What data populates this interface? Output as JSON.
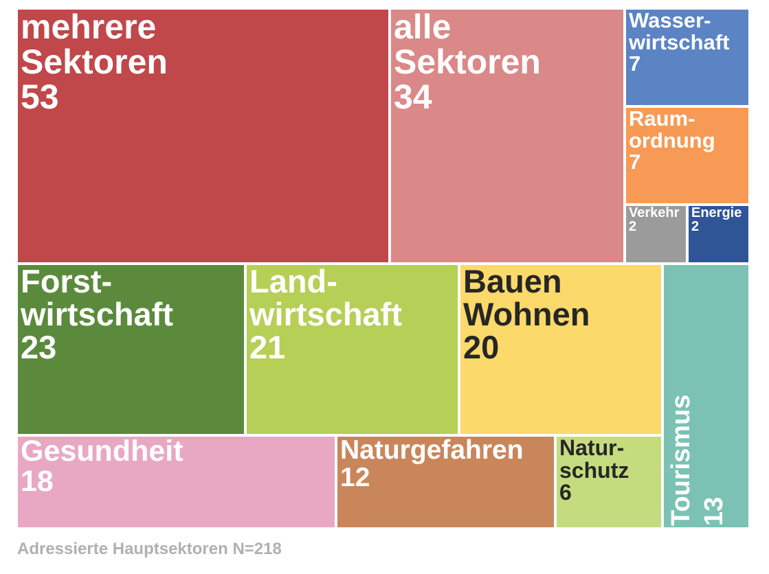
{
  "chart_data": {
    "type": "treemap",
    "caption": "Adressierte Hauptsektoren N=218",
    "items": [
      {
        "key": "mehrere",
        "lines": [
          "mehrere",
          "Sektoren"
        ],
        "value": 53,
        "color": "#c0474a",
        "text_color": "#ffffff"
      },
      {
        "key": "alle",
        "lines": [
          "alle",
          "Sektoren"
        ],
        "value": 34,
        "color": "#da8888",
        "text_color": "#ffffff"
      },
      {
        "key": "wasser",
        "lines": [
          "Wasser-",
          "wirtschaft"
        ],
        "value": 7,
        "color": "#5b84c4",
        "text_color": "#ffffff"
      },
      {
        "key": "raum",
        "lines": [
          "Raum-",
          "ordnung"
        ],
        "value": 7,
        "color": "#f79a55",
        "text_color": "#ffffff"
      },
      {
        "key": "verkehr",
        "lines": [
          "Verkehr"
        ],
        "value": 2,
        "color": "#9b9b9b",
        "text_color": "#ffffff"
      },
      {
        "key": "energie",
        "lines": [
          "Energie"
        ],
        "value": 2,
        "color": "#2f5597",
        "text_color": "#ffffff"
      },
      {
        "key": "forst",
        "lines": [
          "Forst-",
          "wirtschaft"
        ],
        "value": 23,
        "color": "#5b8a3c",
        "text_color": "#ffffff"
      },
      {
        "key": "land",
        "lines": [
          "Land-",
          "wirtschaft"
        ],
        "value": 21,
        "color": "#b6cf56",
        "text_color": "#ffffff"
      },
      {
        "key": "bauen",
        "lines": [
          "Bauen",
          "Wohnen"
        ],
        "value": 20,
        "color": "#fbd96a",
        "text_color": "#262626"
      },
      {
        "key": "tourismus",
        "lines": [
          "Tourismus"
        ],
        "value": 13,
        "color": "#7bc2b4",
        "text_color": "#ffffff"
      },
      {
        "key": "gesundheit",
        "lines": [
          "Gesundheit"
        ],
        "value": 18,
        "color": "#e8a8c4",
        "text_color": "#ffffff"
      },
      {
        "key": "naturgefahren",
        "lines": [
          "Naturgefahren"
        ],
        "value": 12,
        "color": "#c9865b",
        "text_color": "#ffffff"
      },
      {
        "key": "naturschutz",
        "lines": [
          "Natur-",
          "schutz"
        ],
        "value": 6,
        "color": "#c5dc7e",
        "text_color": "#262626"
      }
    ]
  }
}
